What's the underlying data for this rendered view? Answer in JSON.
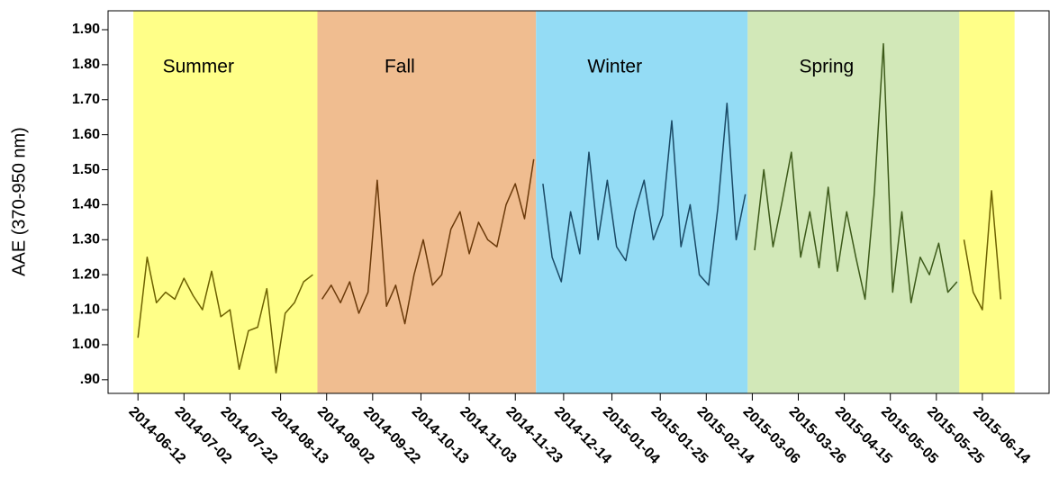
{
  "chart_data": {
    "type": "line",
    "y_label": "AAE (370-950 nm)",
    "xlim": [
      "2014-05-30",
      "2015-07-13"
    ],
    "ylim": [
      0.861,
      1.954
    ],
    "yticks": [
      {
        "value": 0.9,
        "label": ".90"
      },
      {
        "value": 1.0,
        "label": "1.00"
      },
      {
        "value": 1.1,
        "label": "1.10"
      },
      {
        "value": 1.2,
        "label": "1.20"
      },
      {
        "value": 1.3,
        "label": "1.30"
      },
      {
        "value": 1.4,
        "label": "1.40"
      },
      {
        "value": 1.5,
        "label": "1.50"
      },
      {
        "value": 1.6,
        "label": "1.60"
      },
      {
        "value": 1.7,
        "label": "1.70"
      },
      {
        "value": 1.8,
        "label": "1.80"
      },
      {
        "value": 1.9,
        "label": "1.90"
      }
    ],
    "xticks": [
      "2014-06-12",
      "2014-07-02",
      "2014-07-22",
      "2014-08-13",
      "2014-09-02",
      "2014-09-22",
      "2014-10-13",
      "2014-11-03",
      "2014-11-23",
      "2014-12-14",
      "2015-01-04",
      "2015-01-25",
      "2015-02-14",
      "2015-03-06",
      "2015-03-26",
      "2015-04-15",
      "2015-05-05",
      "2015-05-25",
      "2015-06-14"
    ],
    "seasons": [
      {
        "label": "Summer",
        "start": "2014-06-10",
        "end": "2014-08-29",
        "color": "#ffff88"
      },
      {
        "label": "Fall",
        "start": "2014-08-29",
        "end": "2014-12-02",
        "color": "#f0bd90"
      },
      {
        "label": "Winter",
        "start": "2014-12-02",
        "end": "2015-03-04",
        "color": "#94dcf5"
      },
      {
        "label": "Spring",
        "start": "2015-03-04",
        "end": "2015-06-04",
        "color": "#d2e8b8"
      },
      {
        "start": "2015-06-04",
        "end": "2015-06-28",
        "color": "#ffff88"
      }
    ],
    "series": [
      {
        "color": "#6e6200",
        "x": [
          "2014-06-12",
          "2014-06-16",
          "2014-06-20",
          "2014-06-24",
          "2014-06-28",
          "2014-07-02",
          "2014-07-06",
          "2014-07-10",
          "2014-07-14",
          "2014-07-18",
          "2014-07-22",
          "2014-07-26",
          "2014-07-30",
          "2014-08-03",
          "2014-08-07",
          "2014-08-11",
          "2014-08-15",
          "2014-08-19",
          "2014-08-23",
          "2014-08-27"
        ],
        "values": [
          1.02,
          1.25,
          1.12,
          1.15,
          1.13,
          1.19,
          1.14,
          1.1,
          1.21,
          1.08,
          1.1,
          0.93,
          1.04,
          1.05,
          1.16,
          0.92,
          1.09,
          1.12,
          1.18,
          1.2
        ]
      },
      {
        "color": "#6b3a0a",
        "x": [
          "2014-08-31",
          "2014-09-04",
          "2014-09-08",
          "2014-09-12",
          "2014-09-16",
          "2014-09-20",
          "2014-09-24",
          "2014-09-28",
          "2014-10-02",
          "2014-10-06",
          "2014-10-10",
          "2014-10-14",
          "2014-10-18",
          "2014-10-22",
          "2014-10-26",
          "2014-10-30",
          "2014-11-03",
          "2014-11-07",
          "2014-11-11",
          "2014-11-15",
          "2014-11-19",
          "2014-11-23",
          "2014-11-27",
          "2014-12-01"
        ],
        "values": [
          1.13,
          1.17,
          1.12,
          1.18,
          1.09,
          1.15,
          1.47,
          1.11,
          1.17,
          1.06,
          1.2,
          1.3,
          1.17,
          1.2,
          1.33,
          1.38,
          1.26,
          1.35,
          1.3,
          1.28,
          1.4,
          1.46,
          1.36,
          1.53
        ]
      },
      {
        "color": "#1a4a66",
        "x": [
          "2014-12-05",
          "2014-12-09",
          "2014-12-13",
          "2014-12-17",
          "2014-12-21",
          "2014-12-25",
          "2014-12-29",
          "2015-01-02",
          "2015-01-06",
          "2015-01-10",
          "2015-01-14",
          "2015-01-18",
          "2015-01-22",
          "2015-01-26",
          "2015-01-30",
          "2015-02-03",
          "2015-02-07",
          "2015-02-11",
          "2015-02-15",
          "2015-02-19",
          "2015-02-23",
          "2015-02-27",
          "2015-03-03"
        ],
        "values": [
          1.46,
          1.25,
          1.18,
          1.38,
          1.26,
          1.55,
          1.3,
          1.47,
          1.28,
          1.24,
          1.38,
          1.47,
          1.3,
          1.37,
          1.64,
          1.28,
          1.4,
          1.2,
          1.17,
          1.39,
          1.69,
          1.3,
          1.43
        ]
      },
      {
        "color": "#3d5a1a",
        "x": [
          "2015-03-07",
          "2015-03-11",
          "2015-03-15",
          "2015-03-19",
          "2015-03-23",
          "2015-03-27",
          "2015-03-31",
          "2015-04-04",
          "2015-04-08",
          "2015-04-12",
          "2015-04-16",
          "2015-04-20",
          "2015-04-24",
          "2015-04-28",
          "2015-05-02",
          "2015-05-06",
          "2015-05-10",
          "2015-05-14",
          "2015-05-18",
          "2015-05-22",
          "2015-05-26",
          "2015-05-30",
          "2015-06-03"
        ],
        "values": [
          1.27,
          1.5,
          1.28,
          1.41,
          1.55,
          1.25,
          1.38,
          1.22,
          1.45,
          1.21,
          1.38,
          1.25,
          1.13,
          1.43,
          1.86,
          1.15,
          1.38,
          1.12,
          1.25,
          1.2,
          1.29,
          1.15,
          1.18
        ]
      },
      {
        "color": "#6e6200",
        "x": [
          "2015-06-06",
          "2015-06-10",
          "2015-06-14",
          "2015-06-18",
          "2015-06-22"
        ],
        "values": [
          1.3,
          1.15,
          1.1,
          1.44,
          1.13
        ]
      }
    ]
  }
}
